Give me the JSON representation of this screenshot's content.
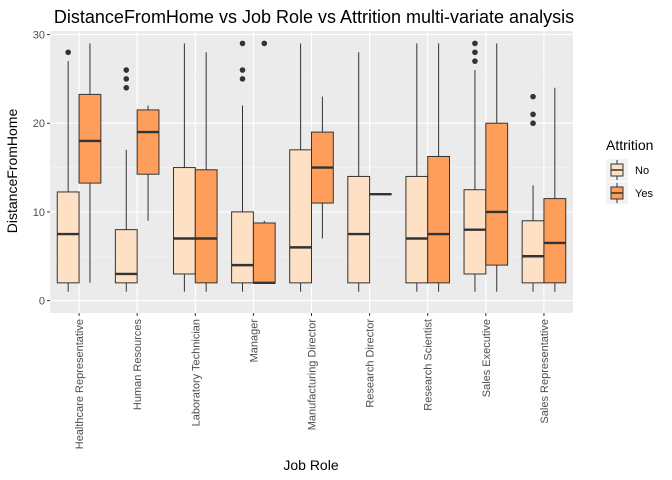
{
  "chart_data": {
    "type": "boxplot",
    "title": "DistanceFromHome vs Job Role vs Attrition multi-variate analysis",
    "xlabel": "Job Role",
    "ylabel": "DistanceFromHome",
    "ylim": [
      -1.4,
      30.4
    ],
    "yticks": [
      0,
      10,
      20,
      30
    ],
    "grid": true,
    "legend": {
      "title": "Attrition",
      "position": "right"
    },
    "categories": [
      "Healthcare Representative",
      "Human Resources",
      "Laboratory Technician",
      "Manager",
      "Manufacturing Director",
      "Research Director",
      "Research Scientist",
      "Sales Executive",
      "Sales Representative"
    ],
    "series": [
      {
        "name": "No",
        "color": "#fee0c5",
        "boxes": [
          {
            "min": 1,
            "q1": 2,
            "median": 7.5,
            "q3": 12.25,
            "max": 27,
            "outliers": [
              28
            ]
          },
          {
            "min": 1,
            "q1": 2,
            "median": 3,
            "q3": 8,
            "max": 17,
            "outliers": [
              24,
              25,
              26
            ]
          },
          {
            "min": 1,
            "q1": 3,
            "median": 7,
            "q3": 15,
            "max": 29,
            "outliers": []
          },
          {
            "min": 1,
            "q1": 2,
            "median": 4,
            "q3": 10,
            "max": 22,
            "outliers": [
              25,
              26,
              29
            ]
          },
          {
            "min": 1,
            "q1": 2,
            "median": 6,
            "q3": 17,
            "max": 29,
            "outliers": []
          },
          {
            "min": 1,
            "q1": 2,
            "median": 7.5,
            "q3": 14,
            "max": 28,
            "outliers": []
          },
          {
            "min": 1,
            "q1": 2,
            "median": 7,
            "q3": 14,
            "max": 29,
            "outliers": []
          },
          {
            "min": 1,
            "q1": 3,
            "median": 8,
            "q3": 12.5,
            "max": 26,
            "outliers": [
              27,
              28,
              29
            ]
          },
          {
            "min": 1,
            "q1": 2,
            "median": 5,
            "q3": 9,
            "max": 13,
            "outliers": [
              20,
              21,
              23
            ]
          }
        ]
      },
      {
        "name": "Yes",
        "color": "#fd9e5b",
        "boxes": [
          {
            "min": 2,
            "q1": 13.25,
            "median": 18,
            "q3": 23.25,
            "max": 29,
            "outliers": []
          },
          {
            "min": 9,
            "q1": 14.25,
            "median": 19,
            "q3": 21.5,
            "max": 22,
            "outliers": []
          },
          {
            "min": 1,
            "q1": 2,
            "median": 7,
            "q3": 14.75,
            "max": 28,
            "outliers": []
          },
          {
            "min": 2,
            "q1": 2,
            "median": 2,
            "q3": 8.75,
            "max": 9,
            "outliers": [
              29
            ]
          },
          {
            "min": 7,
            "q1": 11,
            "median": 15,
            "q3": 19,
            "max": 23,
            "outliers": []
          },
          {
            "min": 12,
            "q1": 12,
            "median": 12,
            "q3": 12,
            "max": 12,
            "outliers": []
          },
          {
            "min": 1,
            "q1": 2,
            "median": 7.5,
            "q3": 16.25,
            "max": 29,
            "outliers": []
          },
          {
            "min": 1,
            "q1": 4,
            "median": 10,
            "q3": 20,
            "max": 29,
            "outliers": []
          },
          {
            "min": 1,
            "q1": 2,
            "median": 6.5,
            "q3": 11.5,
            "max": 24,
            "outliers": []
          }
        ]
      }
    ],
    "colors": {
      "panel": "#ebebeb",
      "grid_major": "#ffffff",
      "grid_minor": "#f5f5f5",
      "box_stroke": "#333333",
      "outlier": "#333333"
    }
  }
}
